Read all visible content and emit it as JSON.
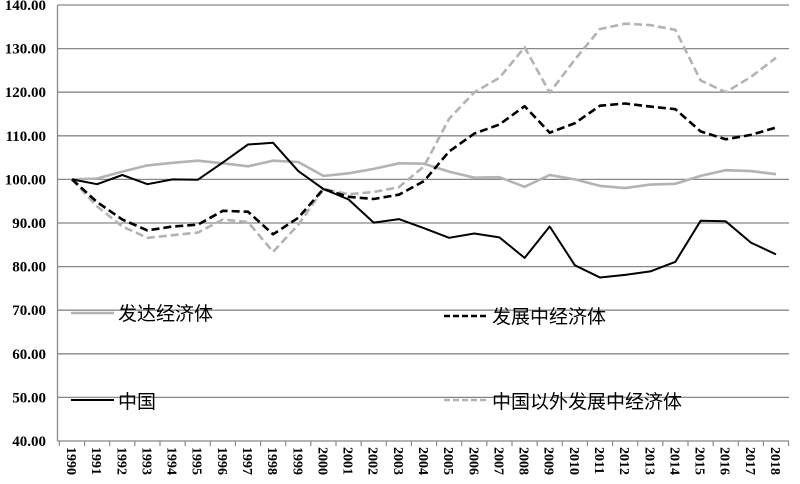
{
  "chart_data": {
    "type": "line",
    "title": "",
    "xlabel": "",
    "ylabel": "",
    "ylim": [
      40,
      140
    ],
    "yticks": [
      "40.00",
      "50.00",
      "60.00",
      "70.00",
      "80.00",
      "90.00",
      "100.00",
      "110.00",
      "120.00",
      "130.00",
      "140.00"
    ],
    "grid": true,
    "legend_position": "inside-lower",
    "x": [
      "1990",
      "1991",
      "1992",
      "1993",
      "1994",
      "1995",
      "1996",
      "1997",
      "1998",
      "1999",
      "2000",
      "2001",
      "2002",
      "2003",
      "2004",
      "2005",
      "2006",
      "2007",
      "2008",
      "2009",
      "2010",
      "2011",
      "2012",
      "2013",
      "2014",
      "2015",
      "2016",
      "2017",
      "2018"
    ],
    "series": [
      {
        "name": "发达经济体",
        "style": "solid",
        "color": "#b3b3b3",
        "values": [
          100,
          100.2,
          101.8,
          103.2,
          103.8,
          104.3,
          103.7,
          103.0,
          104.3,
          104.0,
          100.8,
          101.4,
          102.4,
          103.7,
          103.6,
          101.8,
          100.4,
          100.5,
          98.3,
          101.0,
          100.0,
          98.5,
          98.0,
          98.8,
          99.0,
          100.8,
          102.1,
          101.9,
          101.2
        ]
      },
      {
        "name": "发展中经济体",
        "style": "dashed",
        "color": "#000000",
        "values": [
          100,
          94.8,
          90.8,
          88.3,
          89.2,
          89.6,
          92.8,
          92.6,
          87.4,
          91.2,
          97.8,
          96.0,
          95.5,
          96.5,
          99.6,
          106.4,
          110.5,
          112.6,
          116.8,
          110.7,
          112.9,
          116.9,
          117.4,
          116.7,
          116.1,
          111.0,
          109.2,
          110.2,
          111.9
        ]
      },
      {
        "name": "中国",
        "style": "solid",
        "color": "#000000",
        "values": [
          100,
          98.9,
          101.0,
          98.9,
          100.0,
          99.9,
          103.9,
          108.0,
          108.4,
          101.9,
          97.8,
          95.4,
          90.1,
          90.9,
          88.8,
          86.6,
          87.6,
          86.7,
          82.0,
          89.2,
          80.3,
          77.5,
          78.1,
          78.9,
          81.1,
          90.5,
          90.4,
          85.5,
          82.8
        ]
      },
      {
        "name": "中国以外发展中经济体",
        "style": "dashed",
        "color": "#b3b3b3",
        "values": [
          100,
          93.8,
          89.2,
          86.6,
          87.2,
          87.8,
          90.8,
          90.2,
          83.4,
          89.6,
          97.8,
          96.6,
          97.1,
          98.2,
          103.0,
          113.9,
          120.0,
          123.3,
          130.3,
          119.9,
          127.5,
          134.5,
          135.7,
          135.4,
          134.3,
          122.7,
          120.0,
          123.5,
          127.9
        ]
      }
    ]
  },
  "legend": {
    "developed": "发达经济体",
    "developing": "发展中经济体",
    "china": "中国",
    "developing_ex_china": "中国以外发展中经济体"
  }
}
